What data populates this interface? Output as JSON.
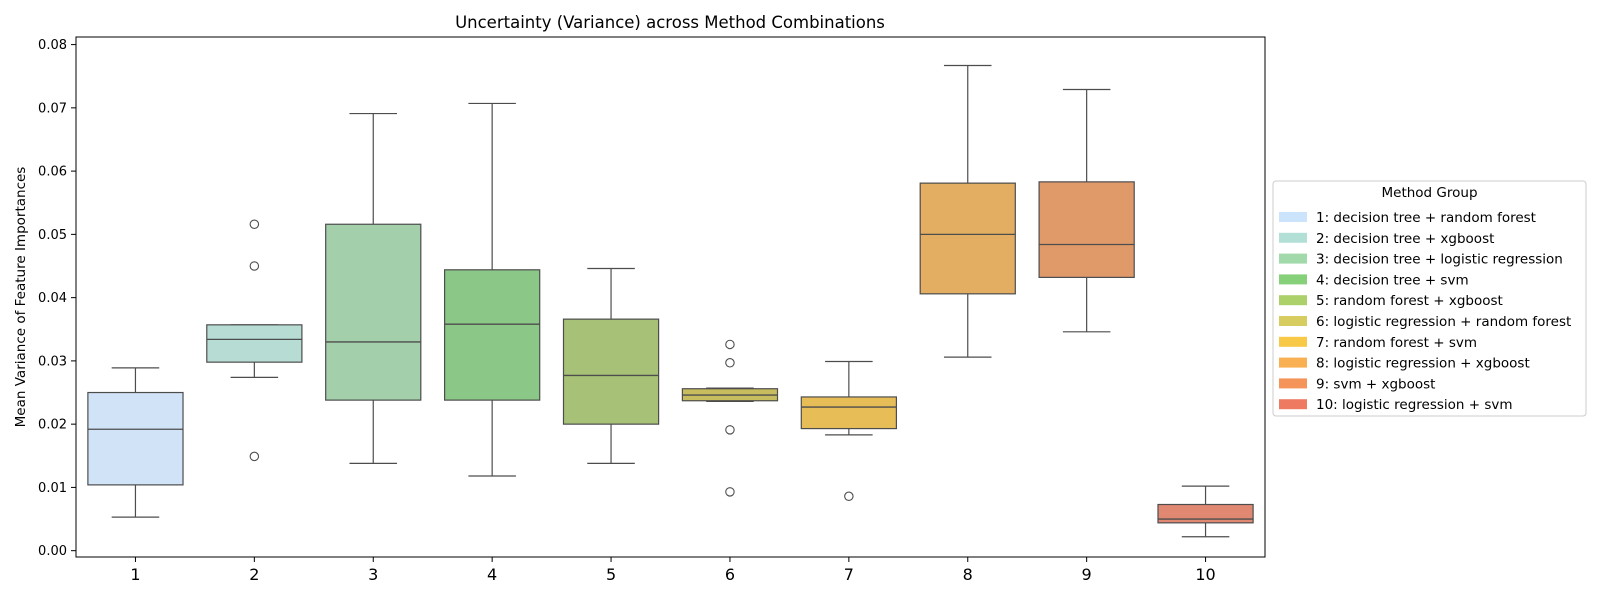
{
  "chart_data": {
    "type": "box",
    "title": "Uncertainty (Variance) across Method Combinations",
    "xlabel": "",
    "ylabel": "Mean Variance of Feature Importances",
    "ylim": [
      -0.001,
      0.0812
    ],
    "yticks": [
      0.0,
      0.01,
      0.02,
      0.03,
      0.04,
      0.05,
      0.06,
      0.07,
      0.08
    ],
    "ytick_labels": [
      "0.00",
      "0.01",
      "0.02",
      "0.03",
      "0.04",
      "0.05",
      "0.06",
      "0.07",
      "0.08"
    ],
    "categories": [
      "1",
      "2",
      "3",
      "4",
      "5",
      "6",
      "7",
      "8",
      "9",
      "10"
    ],
    "grid": false,
    "legend": {
      "title": "Method Group",
      "placement": "outside-right",
      "entries": [
        {
          "label": "1: decision tree + random forest",
          "color": "#cce4fb"
        },
        {
          "label": "2: decision tree + xgboost",
          "color": "#b3e0d6"
        },
        {
          "label": "3: decision tree + logistic regression",
          "color": "#a2d9ab"
        },
        {
          "label": "4: decision tree + svm",
          "color": "#86d07a"
        },
        {
          "label": "5: random forest + xgboost",
          "color": "#acd06a"
        },
        {
          "label": "6: logistic regression + random forest",
          "color": "#d7cc60"
        },
        {
          "label": "7: random forest + svm",
          "color": "#f8c847"
        },
        {
          "label": "8: logistic regression + xgboost",
          "color": "#f9b052"
        },
        {
          "label": "9: svm + xgboost",
          "color": "#f49458"
        },
        {
          "label": "10: logistic regression + svm",
          "color": "#ef7a62"
        }
      ]
    },
    "boxes": [
      {
        "category": "1",
        "whisker_low": 0.0053,
        "q1": 0.0104,
        "median": 0.0192,
        "q3": 0.025,
        "whisker_high": 0.0289,
        "outliers": [],
        "color": "#d0e3f7"
      },
      {
        "category": "2",
        "whisker_low": 0.0274,
        "q1": 0.0298,
        "median": 0.0334,
        "q3": 0.0357,
        "whisker_high": 0.0357,
        "outliers": [
          0.0516,
          0.045,
          0.0149
        ],
        "color": "#b7dcd4"
      },
      {
        "category": "3",
        "whisker_low": 0.0138,
        "q1": 0.0238,
        "median": 0.033,
        "q3": 0.0516,
        "whisker_high": 0.0691,
        "outliers": [],
        "color": "#a3d0ab"
      },
      {
        "category": "4",
        "whisker_low": 0.0118,
        "q1": 0.0238,
        "median": 0.0358,
        "q3": 0.0444,
        "whisker_high": 0.0707,
        "outliers": [],
        "color": "#8bc887"
      },
      {
        "category": "5",
        "whisker_low": 0.0138,
        "q1": 0.02,
        "median": 0.0277,
        "q3": 0.0366,
        "whisker_high": 0.0446,
        "outliers": [],
        "color": "#a7c276"
      },
      {
        "category": "6",
        "whisker_low": 0.0236,
        "q1": 0.0237,
        "median": 0.0246,
        "q3": 0.0256,
        "whisker_high": 0.0257,
        "outliers": [
          0.0326,
          0.0297,
          0.0191,
          0.0093
        ],
        "color": "#c8bd5e"
      },
      {
        "category": "7",
        "whisker_low": 0.0183,
        "q1": 0.0193,
        "median": 0.0227,
        "q3": 0.0243,
        "whisker_high": 0.0299,
        "outliers": [
          0.0086
        ],
        "color": "#e7bd57"
      },
      {
        "category": "8",
        "whisker_low": 0.0306,
        "q1": 0.0406,
        "median": 0.05,
        "q3": 0.0581,
        "whisker_high": 0.0767,
        "outliers": [],
        "color": "#e4ae62"
      },
      {
        "category": "9",
        "whisker_low": 0.0346,
        "q1": 0.0432,
        "median": 0.0484,
        "q3": 0.0583,
        "whisker_high": 0.0729,
        "outliers": [],
        "color": "#e09a6a"
      },
      {
        "category": "10",
        "whisker_low": 0.0022,
        "q1": 0.0044,
        "median": 0.005,
        "q3": 0.0073,
        "whisker_high": 0.0102,
        "outliers": [],
        "color": "#e08872"
      }
    ]
  }
}
